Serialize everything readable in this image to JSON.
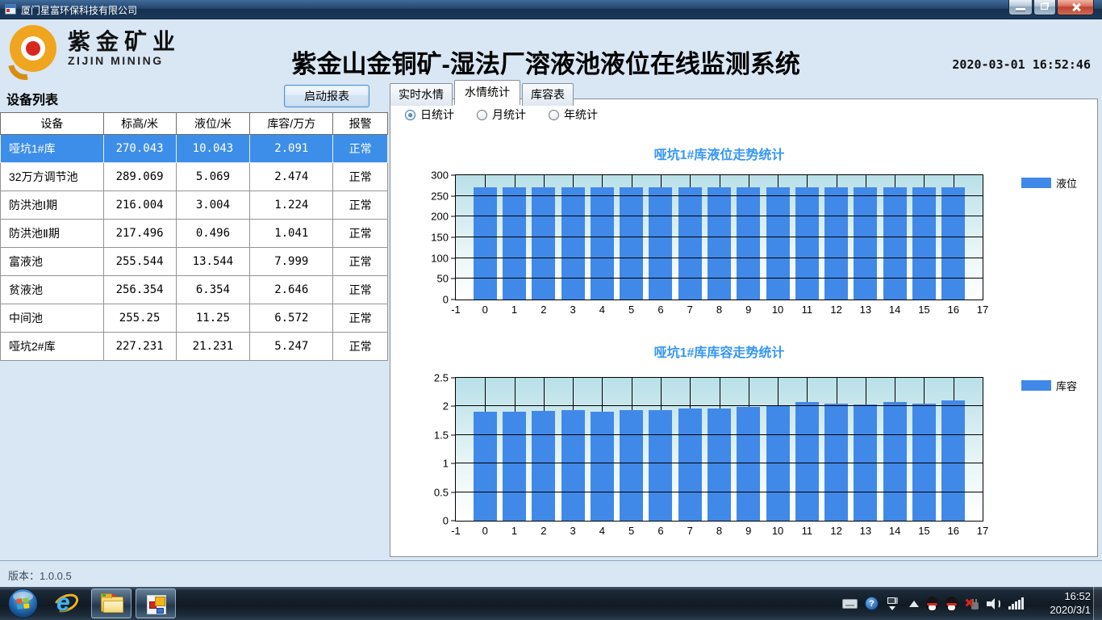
{
  "window": {
    "title": "厦门星富环保科技有限公司"
  },
  "header": {
    "logo_cn": "紫金矿业",
    "logo_en": "ZIJIN MINING",
    "title": "紫金山金铜矿-湿法厂溶液池液位在线监测系统",
    "datetime": "2020-03-01 16:52:46"
  },
  "device_panel": {
    "title": "设备列表",
    "report_button": "启动报表",
    "table": {
      "headers": [
        "设备",
        "标高/米",
        "液位/米",
        "库容/万方",
        "报警"
      ],
      "selected_index": 0,
      "rows": [
        [
          "哑坑1#库",
          "270.043",
          "10.043",
          "2.091",
          "正常"
        ],
        [
          "32万方调节池",
          "289.069",
          "5.069",
          "2.474",
          "正常"
        ],
        [
          "防洪池Ⅰ期",
          "216.004",
          "3.004",
          "1.224",
          "正常"
        ],
        [
          "防洪池Ⅱ期",
          "217.496",
          "0.496",
          "1.041",
          "正常"
        ],
        [
          "富液池",
          "255.544",
          "13.544",
          "7.999",
          "正常"
        ],
        [
          "贫液池",
          "256.354",
          "6.354",
          "2.646",
          "正常"
        ],
        [
          "中间池",
          "255.25",
          "11.25",
          "6.572",
          "正常"
        ],
        [
          "哑坑2#库",
          "227.231",
          "21.231",
          "5.247",
          "正常"
        ]
      ]
    }
  },
  "tabs": {
    "items": [
      {
        "label": "实时水情",
        "active": false
      },
      {
        "label": "水情统计",
        "active": true
      },
      {
        "label": "库容表",
        "active": false
      }
    ]
  },
  "stat_radios": {
    "items": [
      {
        "label": "日统计",
        "checked": true
      },
      {
        "label": "月统计",
        "checked": false
      },
      {
        "label": "年统计",
        "checked": false
      }
    ]
  },
  "chart_data": [
    {
      "type": "bar",
      "title": "哑坑1#库液位走势统计",
      "series_label": "液位",
      "x": [
        0,
        1,
        2,
        3,
        4,
        5,
        6,
        7,
        8,
        9,
        10,
        11,
        12,
        13,
        14,
        15,
        16
      ],
      "values": [
        270,
        270,
        270,
        270,
        270,
        270,
        270,
        270,
        270,
        270,
        270,
        270,
        270,
        270,
        270,
        270,
        270
      ],
      "xlim": [
        -1,
        17
      ],
      "ylim": [
        0,
        300
      ],
      "ytick_step": 50,
      "xlabel": "",
      "ylabel": "",
      "grid": true,
      "legend_position": "right-top",
      "bar_color": "#4189e8"
    },
    {
      "type": "bar",
      "title": "哑坑1#库库容走势统计",
      "series_label": "库容",
      "x": [
        0,
        1,
        2,
        3,
        4,
        5,
        6,
        7,
        8,
        9,
        10,
        11,
        12,
        13,
        14,
        15,
        16
      ],
      "values": [
        1.91,
        1.9,
        1.92,
        1.94,
        1.91,
        1.94,
        1.94,
        1.96,
        1.97,
        1.99,
        2.02,
        2.07,
        2.05,
        2.03,
        2.08,
        2.05,
        2.1
      ],
      "xlim": [
        -1,
        17
      ],
      "ylim": [
        0,
        2.5
      ],
      "ytick_step": 0.5,
      "xlabel": "",
      "ylabel": "",
      "grid": true,
      "legend_position": "right-top",
      "bar_color": "#4189e8"
    }
  ],
  "statusbar": {
    "version_label": "版本：1.0.0.5"
  },
  "taskbar": {
    "ie_glyph": "e",
    "help_glyph": "?",
    "clock": {
      "time": "16:52",
      "date": "2020/3/1"
    }
  },
  "colors": {
    "selected_row": "#3d8ee9",
    "bar_blue": "#4189e8",
    "chart_title_blue": "#3596f7",
    "header_bg": "#d9e6f4"
  }
}
